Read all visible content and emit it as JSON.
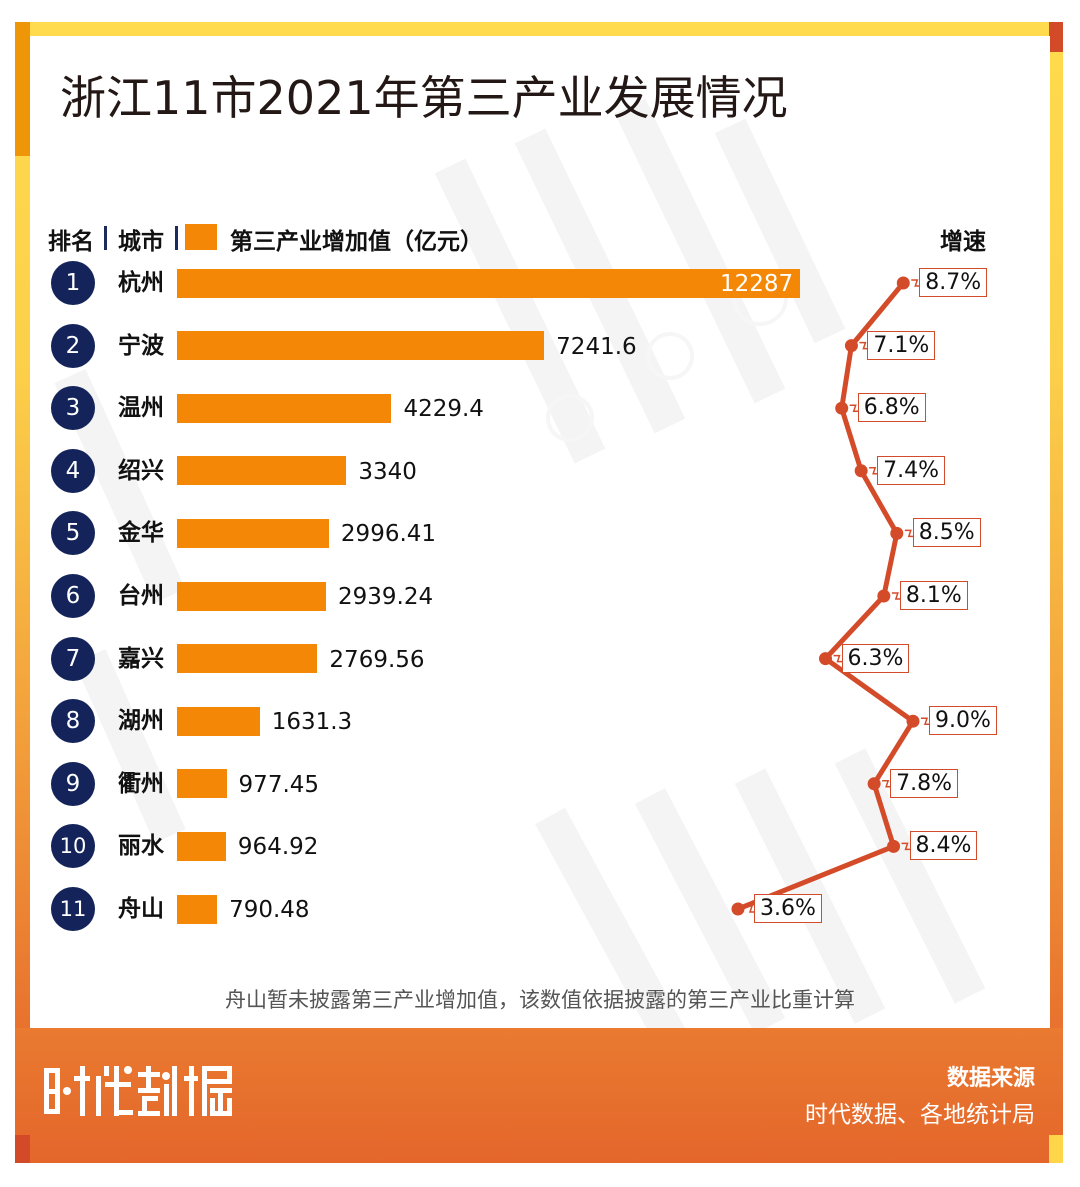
{
  "title": "浙江11市2021年第三产业发展情况",
  "header": {
    "rank_label": "排名",
    "city_label": "城市",
    "value_label": "第三产业增加值（亿元）",
    "growth_label": "增速"
  },
  "colors": {
    "bar": "#F48806",
    "line": "#D44B2A",
    "rank_badge": "#14245A",
    "footer": "#E4662B"
  },
  "chart_data": {
    "type": "bar",
    "title": "浙江11市2021年第三产业发展情况",
    "xlabel": "",
    "ylabel": "",
    "categories": [
      "杭州",
      "宁波",
      "温州",
      "绍兴",
      "金华",
      "台州",
      "嘉兴",
      "湖州",
      "衢州",
      "丽水",
      "舟山"
    ],
    "ranks": [
      "1",
      "2",
      "3",
      "4",
      "5",
      "6",
      "7",
      "8",
      "9",
      "10",
      "11"
    ],
    "series": [
      {
        "name": "第三产业增加值（亿元）",
        "type": "bar",
        "values": [
          12287,
          7241.6,
          4229.4,
          3340,
          2996.41,
          2939.24,
          2769.56,
          1631.3,
          977.45,
          964.92,
          790.48
        ],
        "labels": [
          "12287",
          "7241.6",
          "4229.4",
          "3340",
          "2996.41",
          "2939.24",
          "2769.56",
          "1631.3",
          "977.45",
          "964.92",
          "790.48"
        ]
      },
      {
        "name": "增速",
        "type": "line",
        "values": [
          8.7,
          7.1,
          6.8,
          7.4,
          8.5,
          8.1,
          6.3,
          9.0,
          7.8,
          8.4,
          3.6
        ],
        "labels": [
          "8.7%",
          "7.1%",
          "6.8%",
          "7.4%",
          "8.5%",
          "8.1%",
          "6.3%",
          "9.0%",
          "7.8%",
          "8.4%",
          "3.6%"
        ]
      }
    ],
    "xlim": [
      0,
      12287
    ],
    "growth_range": [
      3.6,
      9.0
    ],
    "grid": false,
    "legend": "top-left"
  },
  "note": "舟山暂未披露第三产业增加值，该数值依据披露的第三产业比重计算",
  "footer": {
    "logo_text": "时代数据",
    "source_title": "数据来源",
    "source_text": "时代数据、各地统计局"
  }
}
